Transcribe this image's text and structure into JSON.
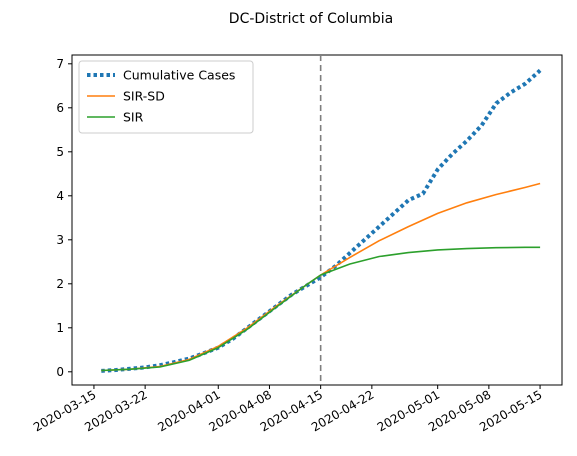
{
  "chart_data": {
    "type": "line",
    "title": "DC-District of Columbia",
    "xlabel": "",
    "ylabel": "",
    "x_tick_labels": [
      "2020-03-15",
      "2020-03-22",
      "2020-04-01",
      "2020-04-08",
      "2020-04-15",
      "2020-04-22",
      "2020-05-01",
      "2020-05-08",
      "2020-05-15"
    ],
    "y_tick_labels": [
      "0",
      "1",
      "2",
      "3",
      "4",
      "5",
      "6",
      "7"
    ],
    "xlim": [
      "2020-03-12",
      "2020-05-18"
    ],
    "ylim": [
      -0.3,
      7.2
    ],
    "grid": false,
    "legend_position": "top-left",
    "vline": {
      "x": "2020-04-15",
      "color": "#7f7f7f",
      "style": "dashed"
    },
    "series": [
      {
        "name": "Cumulative Cases",
        "color": "#1f77b4",
        "style": "dotted",
        "x": [
          "2020-03-16",
          "2020-03-18",
          "2020-03-20",
          "2020-03-22",
          "2020-03-24",
          "2020-03-26",
          "2020-03-28",
          "2020-03-30",
          "2020-04-01",
          "2020-04-03",
          "2020-04-05",
          "2020-04-07",
          "2020-04-09",
          "2020-04-11",
          "2020-04-13",
          "2020-04-15",
          "2020-04-17",
          "2020-04-19",
          "2020-04-21",
          "2020-04-23",
          "2020-04-25",
          "2020-04-27",
          "2020-04-29",
          "2020-05-01",
          "2020-05-03",
          "2020-05-05",
          "2020-05-07",
          "2020-05-09",
          "2020-05-11",
          "2020-05-13",
          "2020-05-15"
        ],
        "y": [
          0.02,
          0.04,
          0.07,
          0.1,
          0.15,
          0.22,
          0.3,
          0.42,
          0.55,
          0.75,
          1.0,
          1.25,
          1.5,
          1.75,
          1.95,
          2.15,
          2.4,
          2.7,
          3.0,
          3.3,
          3.6,
          3.9,
          4.05,
          4.6,
          4.95,
          5.25,
          5.6,
          6.1,
          6.35,
          6.55,
          6.85
        ]
      },
      {
        "name": "SIR-SD",
        "color": "#ff7f0e",
        "style": "solid",
        "x": [
          "2020-03-16",
          "2020-03-20",
          "2020-03-24",
          "2020-03-28",
          "2020-04-01",
          "2020-04-05",
          "2020-04-09",
          "2020-04-13",
          "2020-04-15",
          "2020-04-19",
          "2020-04-23",
          "2020-04-27",
          "2020-05-01",
          "2020-05-05",
          "2020-05-09",
          "2020-05-13",
          "2020-05-15"
        ],
        "y": [
          0.03,
          0.06,
          0.12,
          0.28,
          0.58,
          1.0,
          1.5,
          1.97,
          2.2,
          2.6,
          2.98,
          3.3,
          3.6,
          3.84,
          4.03,
          4.19,
          4.28
        ]
      },
      {
        "name": "SIR",
        "color": "#2ca02c",
        "style": "solid",
        "x": [
          "2020-03-16",
          "2020-03-20",
          "2020-03-24",
          "2020-03-28",
          "2020-04-01",
          "2020-04-05",
          "2020-04-09",
          "2020-04-13",
          "2020-04-15",
          "2020-04-19",
          "2020-04-23",
          "2020-04-27",
          "2020-05-01",
          "2020-05-05",
          "2020-05-09",
          "2020-05-13",
          "2020-05-15"
        ],
        "y": [
          0.03,
          0.06,
          0.11,
          0.26,
          0.55,
          0.97,
          1.48,
          1.97,
          2.2,
          2.45,
          2.62,
          2.71,
          2.77,
          2.8,
          2.82,
          2.83,
          2.83
        ]
      }
    ]
  }
}
